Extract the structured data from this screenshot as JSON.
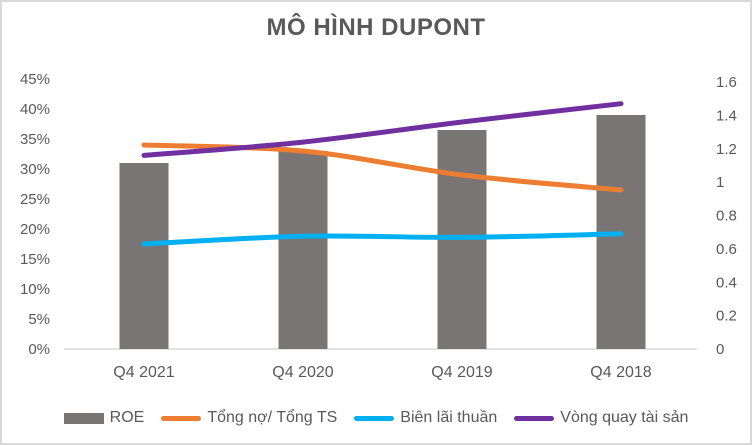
{
  "title": "MÔ HÌNH DUPONT",
  "chart_data": {
    "type": "combo-bar-line",
    "title": "MÔ HÌNH DUPONT",
    "categories": [
      "Q4 2021",
      "Q4 2020",
      "Q4 2019",
      "Q4 2018"
    ],
    "series": [
      {
        "id": "roe",
        "name": "ROE",
        "type": "bar",
        "axis": "left",
        "color": "#7A7575",
        "values": [
          31,
          33,
          36.5,
          39
        ]
      },
      {
        "id": "tong-no-tong-ts",
        "name": "Tổng nợ/ Tổng TS",
        "type": "line",
        "axis": "left",
        "color": "#ED7D31",
        "values": [
          34,
          33,
          29,
          26.5
        ]
      },
      {
        "id": "bien-lai-thuan",
        "name": "Biên lãi thuần",
        "type": "line",
        "axis": "left",
        "color": "#00B0F0",
        "values": [
          17.5,
          18.8,
          18.6,
          19.2
        ]
      },
      {
        "id": "vong-quay-tai-san",
        "name": "Vòng quay tài sản",
        "type": "line",
        "axis": "right",
        "color": "#7030A0",
        "values": [
          1.16,
          1.24,
          1.36,
          1.47
        ]
      }
    ],
    "left_axis": {
      "min": 0,
      "max": 45,
      "tick_labels": [
        "0%",
        "5%",
        "10%",
        "15%",
        "20%",
        "25%",
        "30%",
        "35%",
        "40%",
        "45%"
      ]
    },
    "right_axis": {
      "min": 0,
      "max": 1.6,
      "tick_labels": [
        "0",
        "0.2",
        "0.4",
        "0.6",
        "0.8",
        "1",
        "1.2",
        "1.4",
        "1.6"
      ]
    },
    "grid": false,
    "legend_position": "bottom",
    "colors": {
      "text": "#595959",
      "axis_line": "#D9D9D9",
      "frame_border": "#D9D9D9",
      "background": "#FFFFFF"
    }
  }
}
